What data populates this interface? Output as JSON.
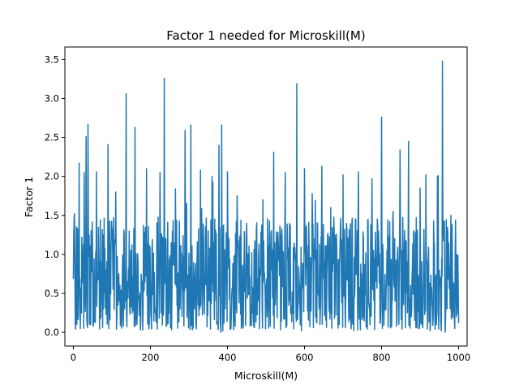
{
  "chart_data": {
    "type": "line",
    "title": "Factor 1 needed for Microskill(M)",
    "xlabel": "Microskill(M)",
    "ylabel": "Factor 1",
    "xlim": [
      -22,
      1022
    ],
    "ylim": [
      -0.175,
      3.66
    ],
    "xticks": [
      0,
      200,
      400,
      600,
      800,
      1000
    ],
    "yticks": [
      0.0,
      0.5,
      1.0,
      1.5,
      2.0,
      2.5,
      3.0,
      3.5
    ],
    "xtick_labels": [
      "0",
      "200",
      "400",
      "600",
      "800",
      "1000"
    ],
    "ytick_labels": [
      "0.0",
      "0.5",
      "1.0",
      "1.5",
      "2.0",
      "2.5",
      "3.0",
      "3.5"
    ],
    "grid": false,
    "series": [
      {
        "color": "#1f77b4",
        "peaks": [
          [
            3,
            1.52
          ],
          [
            15,
            2.17
          ],
          [
            28,
            2.05
          ],
          [
            33,
            2.51
          ],
          [
            38,
            2.67
          ],
          [
            60,
            2.06
          ],
          [
            90,
            2.41
          ],
          [
            110,
            1.8
          ],
          [
            137,
            3.06
          ],
          [
            160,
            2.63
          ],
          [
            190,
            2.1
          ],
          [
            225,
            2.05
          ],
          [
            236,
            3.26
          ],
          [
            265,
            1.84
          ],
          [
            290,
            2.59
          ],
          [
            305,
            2.66
          ],
          [
            330,
            2.08
          ],
          [
            360,
            2.0
          ],
          [
            378,
            2.4
          ],
          [
            385,
            2.66
          ],
          [
            400,
            2.06
          ],
          [
            425,
            1.75
          ],
          [
            450,
            1.4
          ],
          [
            492,
            1.7
          ],
          [
            520,
            2.31
          ],
          [
            550,
            2.05
          ],
          [
            580,
            3.19
          ],
          [
            600,
            2.1
          ],
          [
            620,
            1.78
          ],
          [
            645,
            2.13
          ],
          [
            668,
            1.6
          ],
          [
            700,
            2.02
          ],
          [
            740,
            2.06
          ],
          [
            775,
            1.97
          ],
          [
            800,
            2.76
          ],
          [
            830,
            1.55
          ],
          [
            848,
            2.34
          ],
          [
            870,
            2.45
          ],
          [
            900,
            1.85
          ],
          [
            915,
            2.02
          ],
          [
            945,
            2.0
          ],
          [
            958,
            3.48
          ],
          [
            980,
            1.5
          ],
          [
            995,
            1.0
          ]
        ],
        "troughs": [
          [
            5,
            0.12
          ],
          [
            18,
            0.05
          ],
          [
            52,
            0.08
          ],
          [
            112,
            0.04
          ],
          [
            130,
            0.08
          ],
          [
            180,
            0.03
          ],
          [
            252,
            0.06
          ],
          [
            318,
            0.12
          ],
          [
            347,
            0.07
          ],
          [
            372,
            0.11
          ],
          [
            383,
            0.0
          ],
          [
            388,
            0.02
          ],
          [
            420,
            0.08
          ],
          [
            470,
            0.06
          ],
          [
            552,
            0.06
          ],
          [
            592,
            0.02
          ],
          [
            640,
            0.1
          ],
          [
            668,
            0.05
          ],
          [
            690,
            0.1
          ],
          [
            728,
            0.02
          ],
          [
            760,
            0.07
          ],
          [
            802,
            0.05
          ],
          [
            862,
            0.06
          ],
          [
            898,
            0.06
          ],
          [
            926,
            0.02
          ],
          [
            955,
            0.02
          ],
          [
            965,
            0.0
          ],
          [
            990,
            0.05
          ],
          [
            1000,
            0.12
          ]
        ]
      }
    ]
  }
}
